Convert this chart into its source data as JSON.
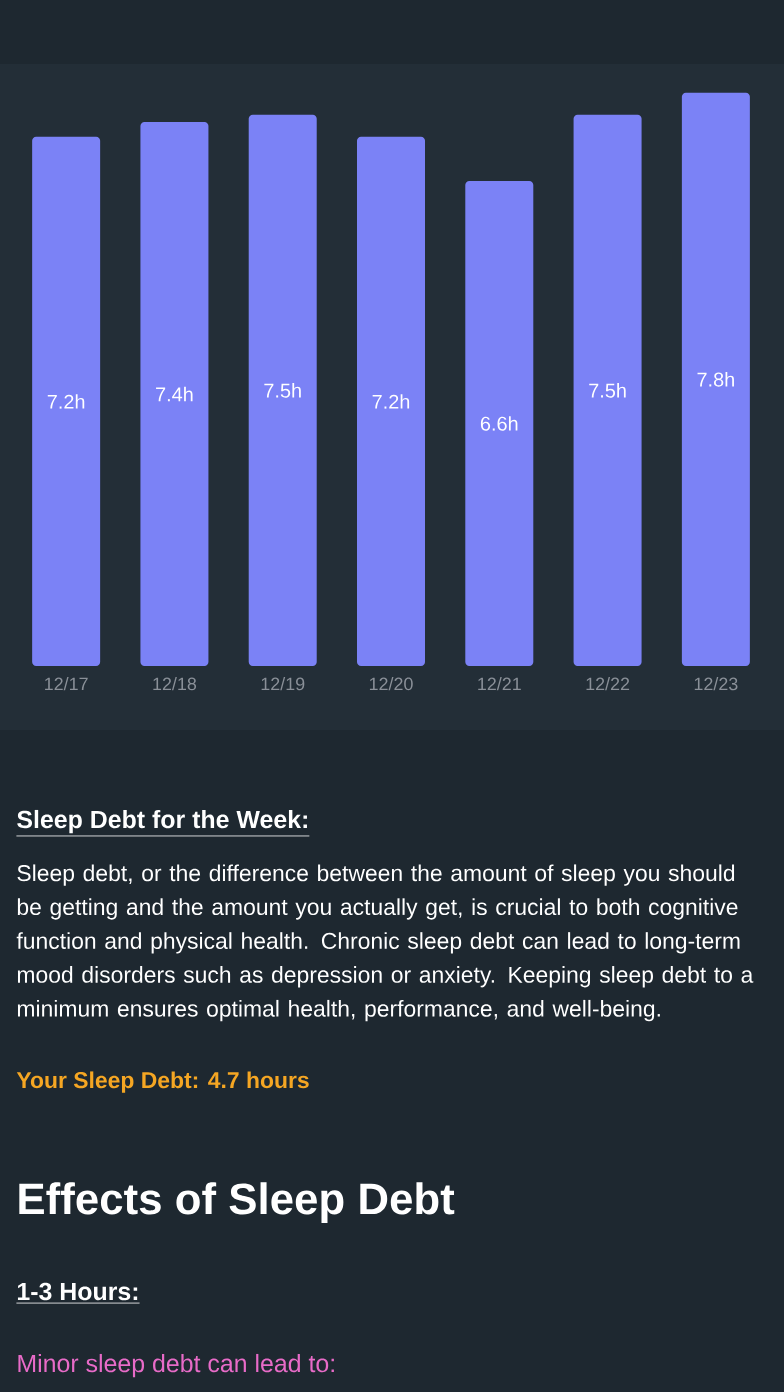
{
  "chart_data": {
    "type": "bar",
    "categories": [
      "12/17",
      "12/18",
      "12/19",
      "12/20",
      "12/21",
      "12/22",
      "12/23"
    ],
    "values": [
      7.2,
      7.4,
      7.5,
      7.2,
      6.6,
      7.5,
      7.8
    ],
    "value_labels": [
      "7.2h",
      "7.4h",
      "7.5h",
      "7.2h",
      "6.6h",
      "7.5h",
      "7.8h"
    ],
    "color": "#7b82f6",
    "annotations": [
      "Sleep Debt for the Week:",
      "Sleep debt, or the difference between the amount of sleep you should be getting and the amount you actually get, is crucial to both cognitive function and physical health. Chronic sleep debt can lead to long-term mood disorders such as depression or anxiety. Keeping sleep debt to a minimum ensures optimal health, performance, and well-being.",
      "Your Sleep Debt: 4.7 hours",
      "Effects of Sleep Debt",
      "1-3 Hours:",
      "Minor sleep debt can lead to:"
    ]
  }
}
